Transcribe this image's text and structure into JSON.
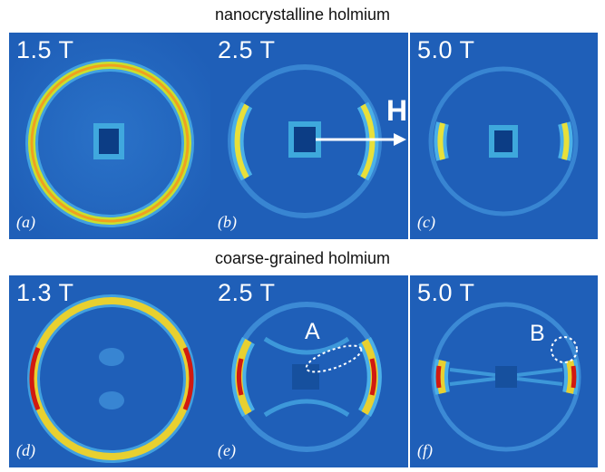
{
  "rows": [
    {
      "title": "nanocrystalline holmium",
      "panels": [
        {
          "field": "1.5 T",
          "label": "(a)"
        },
        {
          "field": "2.5 T",
          "label": "(b)"
        },
        {
          "field": "5.0 T",
          "label": "(c)"
        }
      ]
    },
    {
      "title": "coarse-grained holmium",
      "panels": [
        {
          "field": "1.3 T",
          "label": "(d)"
        },
        {
          "field": "2.5 T",
          "label": "(e)"
        },
        {
          "field": "5.0 T",
          "label": "(f)"
        }
      ]
    }
  ],
  "annotations": {
    "field_direction": "H",
    "region_a": "A",
    "region_b": "B"
  },
  "colors": {
    "background": "#1f5fb8",
    "low": "#3aa0e0",
    "mid": "#e8e03a",
    "high": "#d11a10",
    "center": "#0c3d85"
  }
}
